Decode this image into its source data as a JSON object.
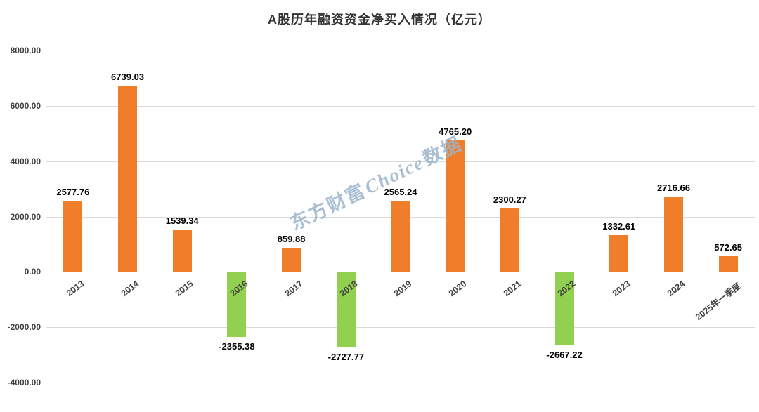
{
  "chart_data": {
    "type": "bar",
    "title": "A股历年融资资金净买入情况（亿元）",
    "categories": [
      "2013",
      "2014",
      "2015",
      "2016",
      "2017",
      "2018",
      "2019",
      "2020",
      "2021",
      "2022",
      "2023",
      "2024",
      "2025年一季度"
    ],
    "values": [
      2577.76,
      6739.03,
      1539.34,
      -2355.38,
      859.88,
      -2727.77,
      2565.24,
      4765.2,
      2300.27,
      -2667.22,
      1332.61,
      2716.66,
      572.65
    ],
    "value_labels": [
      "2577.76",
      "6739.03",
      "1539.34",
      "-2355.38",
      "859.88",
      "-2727.77",
      "2565.24",
      "4765.20",
      "2300.27",
      "-2667.22",
      "1332.61",
      "2716.66",
      "572.65"
    ],
    "xlabel": "",
    "ylabel": "",
    "ylim": [
      -4000,
      8000
    ],
    "y_ticks": [
      "8000.00",
      "6000.00",
      "4000.00",
      "2000.00",
      "0.00",
      "-2000.00",
      "-4000.00"
    ],
    "grid": true,
    "legend": false,
    "positive_color": "#F07D2A",
    "negative_color": "#92D050"
  },
  "watermark": {
    "prefix": "东方财富",
    "brand": "Choice",
    "suffix": "数据"
  }
}
